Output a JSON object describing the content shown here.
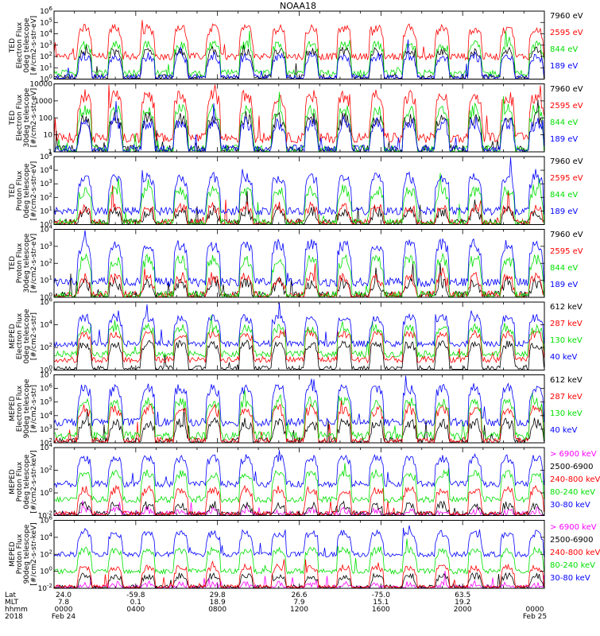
{
  "title": "NOAA18",
  "colors": {
    "black": "#000000",
    "red": "#ff0000",
    "green": "#00e000",
    "blue": "#0000ff",
    "magenta": "#ff00ff"
  },
  "panels": [
    {
      "id": "ted-e-0",
      "ylabel": [
        "TED",
        "Electron Flux",
        "0deg telescope",
        "[#/cm2-s-str-eV]"
      ],
      "yticks": [
        "10^0",
        "10^1",
        "10^2",
        "10^3",
        "10^4",
        "10^5",
        "10^6"
      ],
      "legend": [
        {
          "text": "7960 eV",
          "color": "black"
        },
        {
          "text": "2595 eV",
          "color": "red"
        },
        {
          "text": "844 eV",
          "color": "green"
        },
        {
          "text": "189 eV",
          "color": "blue"
        }
      ]
    },
    {
      "id": "ted-e-30",
      "ylabel": [
        "TED",
        "Electron Flux",
        "30deg telescope",
        "[#/cm2-s-str-eV]"
      ],
      "yticks": [
        "1",
        "10",
        "100",
        "1000",
        "10000"
      ],
      "legend": [
        {
          "text": "7960 eV",
          "color": "black"
        },
        {
          "text": "2595 eV",
          "color": "red"
        },
        {
          "text": "844 eV",
          "color": "green"
        },
        {
          "text": "189 eV",
          "color": "blue"
        }
      ]
    },
    {
      "id": "ted-p-0",
      "ylabel": [
        "TED",
        "Proton Flux",
        "0deg telescope",
        "[#/cm2-s-str-eV]"
      ],
      "yticks": [
        "10^0",
        "10^1",
        "10^2",
        "10^3",
        "10^4",
        "10^5"
      ],
      "legend": [
        {
          "text": "7960 eV",
          "color": "black"
        },
        {
          "text": "2595 eV",
          "color": "red"
        },
        {
          "text": "844 eV",
          "color": "green"
        },
        {
          "text": "189 eV",
          "color": "blue"
        }
      ]
    },
    {
      "id": "ted-p-30",
      "ylabel": [
        "TED",
        "Proton Flux",
        "30deg telescope",
        "[#/cm2-s-str-eV]"
      ],
      "yticks": [
        "10^0",
        "10^1",
        "10^2",
        "10^3",
        "10^4"
      ],
      "legend": [
        {
          "text": "7960 eV",
          "color": "black"
        },
        {
          "text": "2595 eV",
          "color": "red"
        },
        {
          "text": "844 eV",
          "color": "green"
        },
        {
          "text": "189 eV",
          "color": "blue"
        }
      ]
    },
    {
      "id": "meped-e-0",
      "ylabel": [
        "MEPED",
        "Electron Flux",
        "0deg telescope",
        "[#/cm2-s-str]"
      ],
      "yticks": [
        "10^0",
        "10^2",
        "10^4",
        "10^6"
      ],
      "legend": [
        {
          "text": "612 keV",
          "color": "black"
        },
        {
          "text": "287 keV",
          "color": "red"
        },
        {
          "text": "130 keV",
          "color": "green"
        },
        {
          "text": "40 keV",
          "color": "blue"
        }
      ]
    },
    {
      "id": "meped-e-90",
      "ylabel": [
        "MEPED",
        "Electron Flux",
        "90deg telescope",
        "[#/cm2-s-str]"
      ],
      "yticks": [
        "10^2",
        "10^3",
        "10^4",
        "10^5",
        "10^6",
        "10^7"
      ],
      "legend": [
        {
          "text": "612 keV",
          "color": "black"
        },
        {
          "text": "287 keV",
          "color": "red"
        },
        {
          "text": "130 keV",
          "color": "green"
        },
        {
          "text": "40 keV",
          "color": "blue"
        }
      ]
    },
    {
      "id": "meped-p-0",
      "ylabel": [
        "MEPED",
        "Proton Flux",
        "0deg telescope",
        "[#/cm2-s-str-keV]"
      ],
      "yticks": [
        "10^-2",
        "10^0",
        "10^2",
        "10^4"
      ],
      "legend": [
        {
          "text": "> 6900 keV",
          "color": "magenta"
        },
        {
          "text": "2500-6900",
          "color": "black"
        },
        {
          "text": "240-800 keV",
          "color": "red"
        },
        {
          "text": "80-240 keV",
          "color": "green"
        },
        {
          "text": "30-80 keV",
          "color": "blue"
        }
      ]
    },
    {
      "id": "meped-p-90",
      "ylabel": [
        "MEPED",
        "Proton Flux",
        "90deg telescope",
        "[#/cm2-s-str-keV]"
      ],
      "yticks": [
        "10^-2",
        "10^0",
        "10^2",
        "10^4",
        "10^6"
      ],
      "legend": [
        {
          "text": "> 6900 keV",
          "color": "magenta"
        },
        {
          "text": "2500-6900",
          "color": "black"
        },
        {
          "text": "240-800 keV",
          "color": "red"
        },
        {
          "text": "80-240 keV",
          "color": "green"
        },
        {
          "text": "30-80 keV",
          "color": "blue"
        }
      ]
    }
  ],
  "orbit_axis": {
    "rows": [
      "Lat",
      "MLT",
      "hhmm",
      "2018"
    ],
    "columns": [
      {
        "lat": "24.0",
        "mlt": "7.8",
        "hhmm": "0000",
        "date": "Feb 24"
      },
      {
        "lat": "-59.8",
        "mlt": "0.1",
        "hhmm": "0400",
        "date": ""
      },
      {
        "lat": "29.8",
        "mlt": "18.9",
        "hhmm": "0800",
        "date": ""
      },
      {
        "lat": "26.6",
        "mlt": "7.9",
        "hhmm": "1200",
        "date": ""
      },
      {
        "lat": "-75.0",
        "mlt": "15.1",
        "hhmm": "1600",
        "date": ""
      },
      {
        "lat": "63.5",
        "mlt": "19.2",
        "hhmm": "2000",
        "date": ""
      },
      {
        "lat": "",
        "mlt": "",
        "hhmm": "0000",
        "date": "Feb 25"
      }
    ]
  },
  "chart_data": {
    "type": "line",
    "title": "NOAA18",
    "x_unit": "UT hours, 2018 Feb 24 to Feb 25",
    "xlim": [
      0,
      24
    ],
    "x_major_ticks": [
      "0000",
      "0400",
      "0800",
      "1200",
      "1600",
      "2000",
      "0000"
    ],
    "y_scale": "log",
    "grid": false,
    "legend_placement": "right of each panel",
    "pass_times_hours": [
      1.5,
      3.0,
      4.6,
      6.2,
      7.8,
      9.4,
      11.0,
      12.6,
      14.2,
      15.8,
      17.4,
      19.0,
      20.6,
      22.2,
      23.6
    ],
    "panels": [
      {
        "id": "ted-e-0",
        "ylim": [
          1,
          1000000
        ],
        "series": [
          {
            "name": "7960 eV",
            "color": "#000000",
            "typical_peak": 300
          },
          {
            "name": "2595 eV",
            "color": "#ff0000",
            "typical_peak": 30000
          },
          {
            "name": "844 eV",
            "color": "#00e000",
            "typical_peak": 1000
          },
          {
            "name": "189 eV",
            "color": "#0000ff",
            "typical_peak": 100
          }
        ]
      },
      {
        "id": "ted-e-30",
        "ylim": [
          1,
          10000
        ],
        "series": [
          {
            "name": "7960 eV",
            "color": "#000000",
            "typical_peak": 100
          },
          {
            "name": "2595 eV",
            "color": "#ff0000",
            "typical_peak": 2000
          },
          {
            "name": "844 eV",
            "color": "#00e000",
            "typical_peak": 300
          },
          {
            "name": "189 eV",
            "color": "#0000ff",
            "typical_peak": 50
          }
        ]
      },
      {
        "id": "ted-p-0",
        "ylim": [
          1,
          100000
        ],
        "series": [
          {
            "name": "7960 eV",
            "color": "#000000",
            "typical_peak": 10
          },
          {
            "name": "2595 eV",
            "color": "#ff0000",
            "typical_peak": 20
          },
          {
            "name": "844 eV",
            "color": "#00e000",
            "typical_peak": 300
          },
          {
            "name": "189 eV",
            "color": "#0000ff",
            "typical_peak": 3000
          }
        ]
      },
      {
        "id": "ted-p-30",
        "ylim": [
          1,
          30000
        ],
        "series": [
          {
            "name": "7960 eV",
            "color": "#000000",
            "typical_peak": 10
          },
          {
            "name": "2595 eV",
            "color": "#ff0000",
            "typical_peak": 20
          },
          {
            "name": "844 eV",
            "color": "#00e000",
            "typical_peak": 300
          },
          {
            "name": "189 eV",
            "color": "#0000ff",
            "typical_peak": 3000
          }
        ]
      },
      {
        "id": "meped-e-0",
        "ylim": [
          1,
          3000000
        ],
        "series": [
          {
            "name": "612 keV",
            "color": "#000000",
            "typical_peak": 300
          },
          {
            "name": "287 keV",
            "color": "#ff0000",
            "typical_peak": 3000
          },
          {
            "name": "130 keV",
            "color": "#00e000",
            "typical_peak": 10000
          },
          {
            "name": "40 keV",
            "color": "#0000ff",
            "typical_peak": 100000
          }
        ]
      },
      {
        "id": "meped-e-90",
        "ylim": [
          100,
          10000000
        ],
        "series": [
          {
            "name": "612 keV",
            "color": "#000000",
            "typical_peak": 3000
          },
          {
            "name": "287 keV",
            "color": "#ff0000",
            "typical_peak": 30000
          },
          {
            "name": "130 keV",
            "color": "#00e000",
            "typical_peak": 100000
          },
          {
            "name": "40 keV",
            "color": "#0000ff",
            "typical_peak": 1000000
          }
        ]
      },
      {
        "id": "meped-p-0",
        "ylim": [
          0.01,
          30000
        ],
        "series": [
          {
            "name": "> 6900 keV",
            "color": "#ff00ff",
            "typical_peak": 0.03
          },
          {
            "name": "2500-6900",
            "color": "#000000",
            "typical_peak": 0.1
          },
          {
            "name": "240-800 keV",
            "color": "#ff0000",
            "typical_peak": 3
          },
          {
            "name": "80-240 keV",
            "color": "#00e000",
            "typical_peak": 100
          },
          {
            "name": "30-80 keV",
            "color": "#0000ff",
            "typical_peak": 3000
          }
        ]
      },
      {
        "id": "meped-p-90",
        "ylim": [
          0.01,
          1000000
        ],
        "series": [
          {
            "name": "> 6900 keV",
            "color": "#ff00ff",
            "typical_peak": 0.03
          },
          {
            "name": "2500-6900",
            "color": "#000000",
            "typical_peak": 0.3
          },
          {
            "name": "240-800 keV",
            "color": "#ff0000",
            "typical_peak": 3
          },
          {
            "name": "80-240 keV",
            "color": "#00e000",
            "typical_peak": 300
          },
          {
            "name": "30-80 keV",
            "color": "#0000ff",
            "typical_peak": 30000
          }
        ]
      }
    ]
  }
}
